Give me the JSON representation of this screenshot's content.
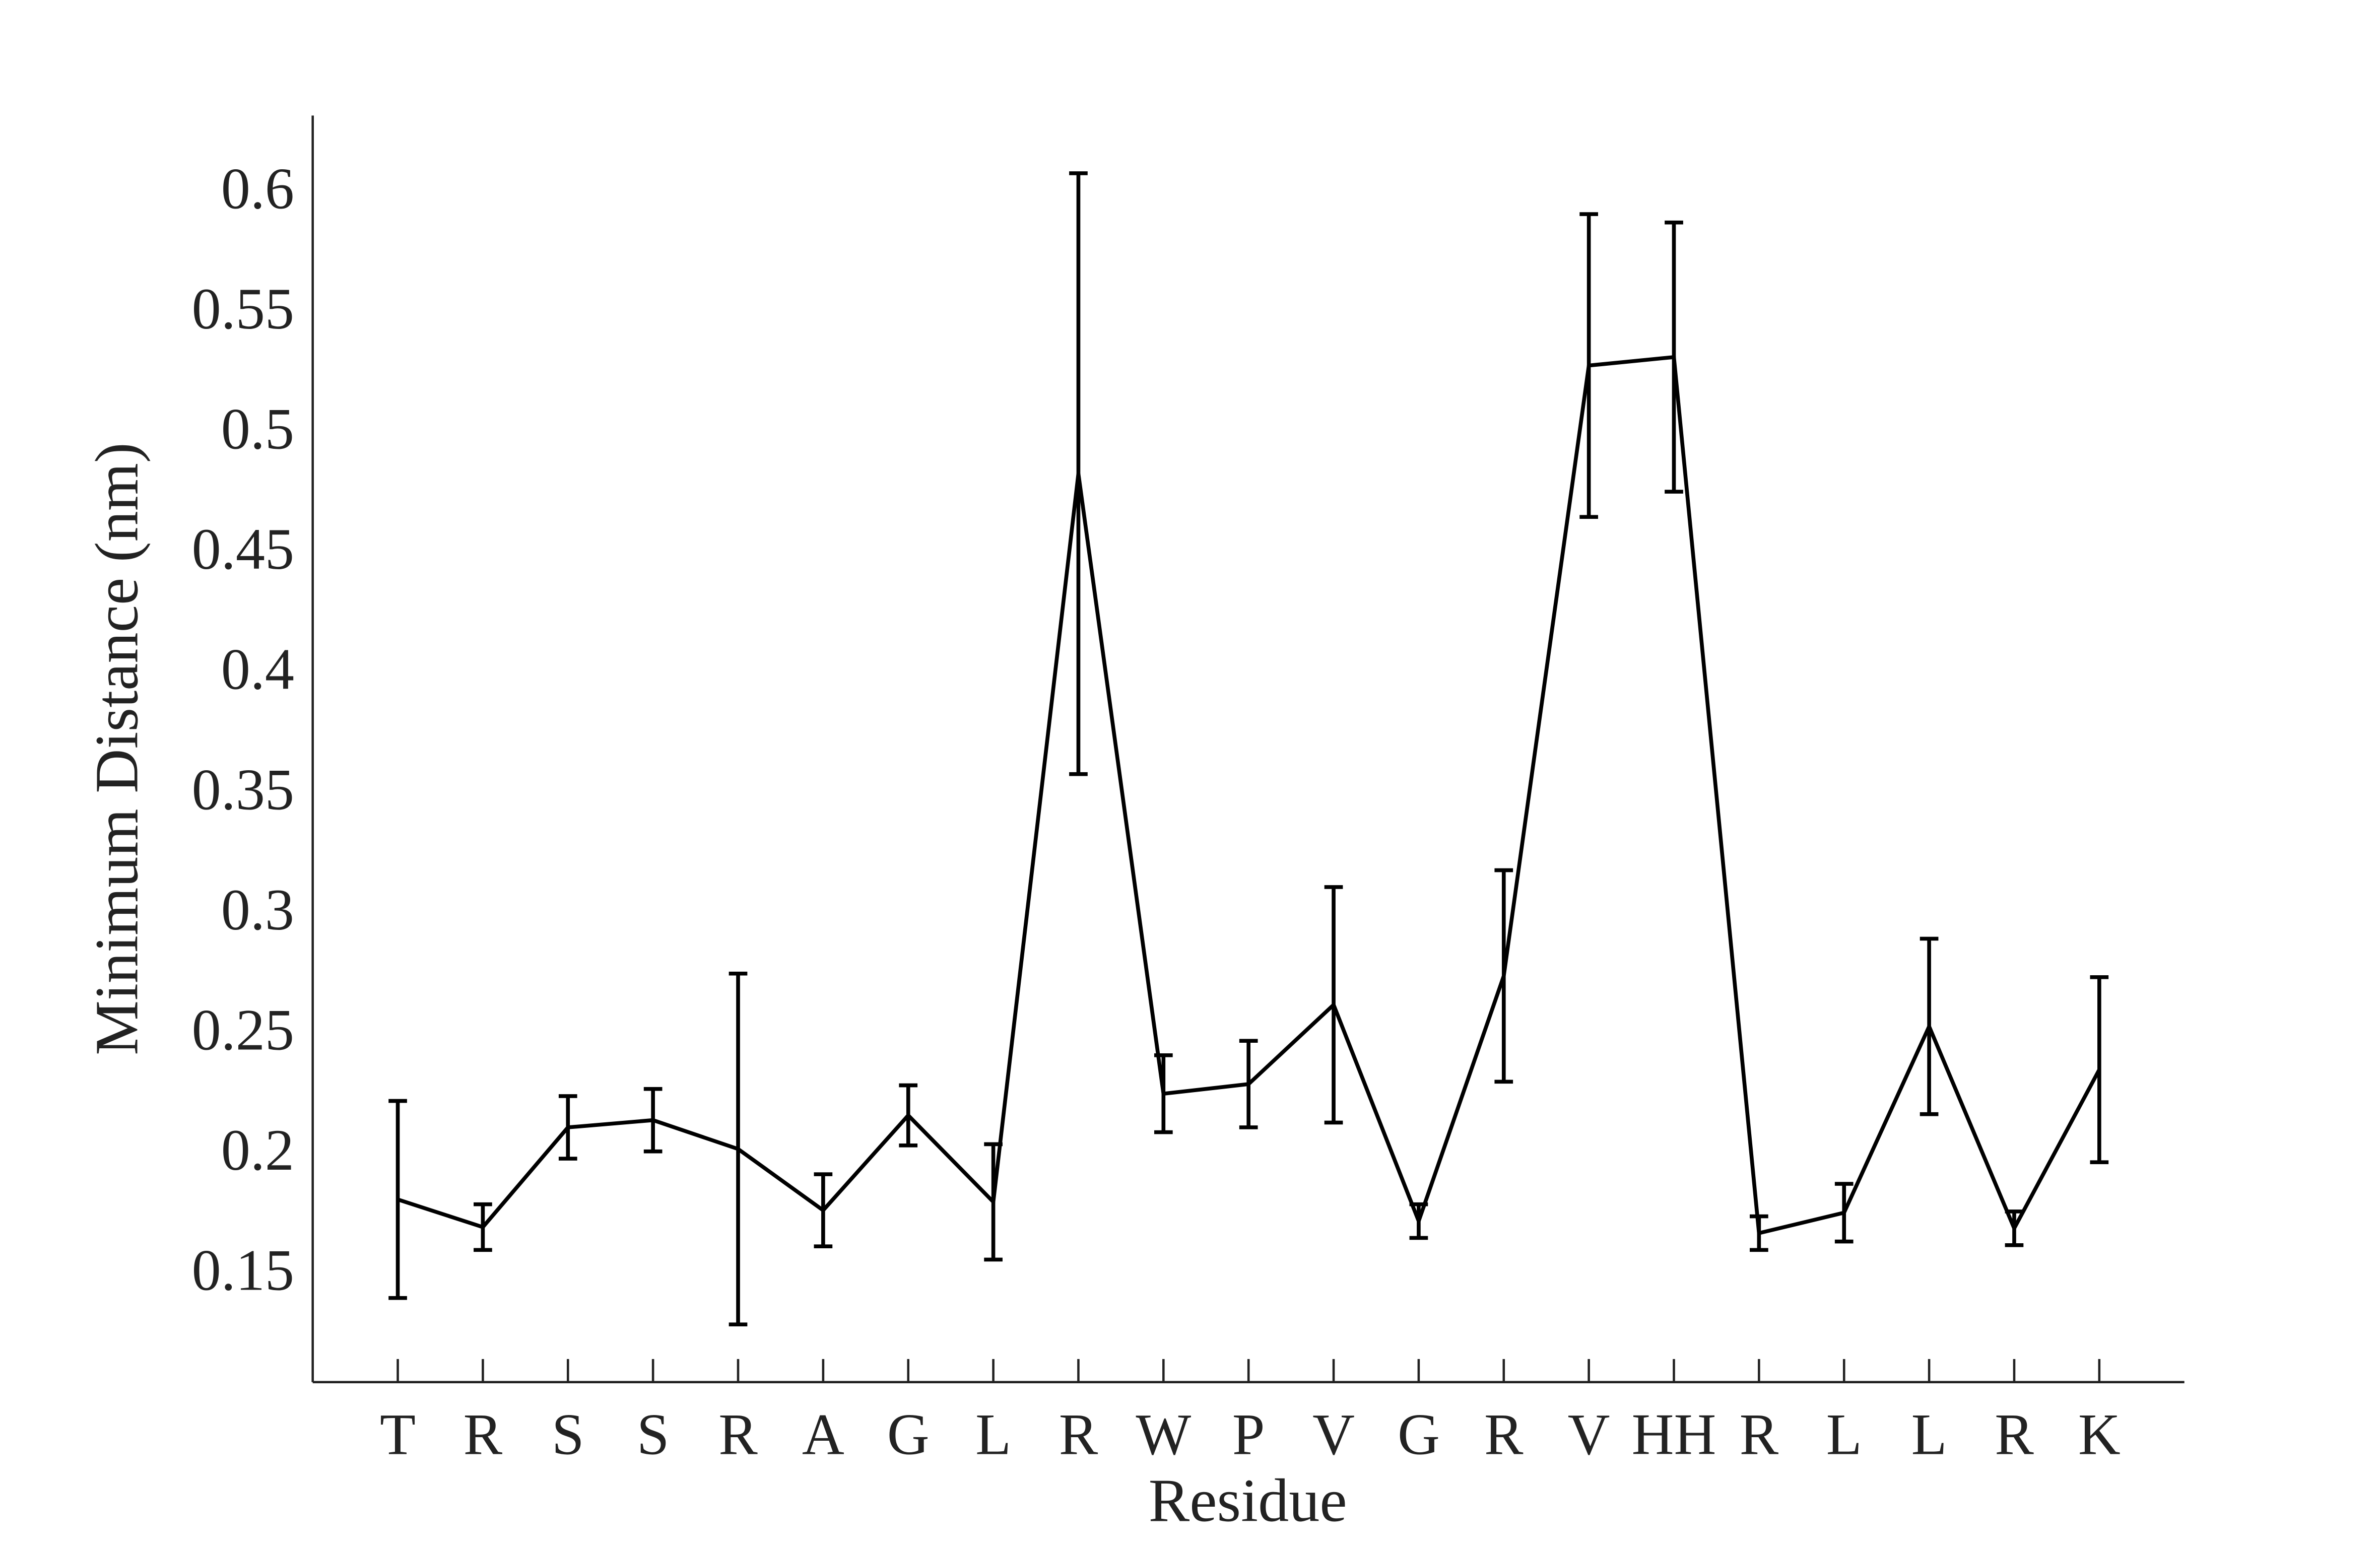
{
  "chart_data": {
    "type": "line",
    "xlabel": "Residue",
    "ylabel": "Minimum Distance (nm)",
    "categories": [
      "T",
      "R",
      "S",
      "S",
      "R",
      "A",
      "G",
      "L",
      "R",
      "W",
      "P",
      "V",
      "G",
      "R",
      "V",
      "HH",
      "R",
      "L",
      "L",
      "R",
      "K"
    ],
    "values": [
      0.182,
      0.1705,
      0.212,
      0.215,
      0.203,
      0.1775,
      0.217,
      0.181,
      0.484,
      0.226,
      0.23,
      0.263,
      0.173,
      0.275,
      0.529,
      0.5325,
      0.168,
      0.1765,
      0.254,
      0.17,
      0.236
    ],
    "errors": [
      0.041,
      0.0095,
      0.013,
      0.013,
      0.073,
      0.015,
      0.0125,
      0.024,
      0.125,
      0.016,
      0.018,
      0.049,
      0.007,
      0.044,
      0.063,
      0.056,
      0.007,
      0.012,
      0.0365,
      0.007,
      0.0385
    ],
    "color": "#000000",
    "ylim": [
      0.106,
      0.633
    ],
    "yticks": [
      0.15,
      0.2,
      0.25,
      0.3,
      0.35,
      0.4,
      0.45,
      0.5,
      0.55,
      0.6
    ]
  }
}
